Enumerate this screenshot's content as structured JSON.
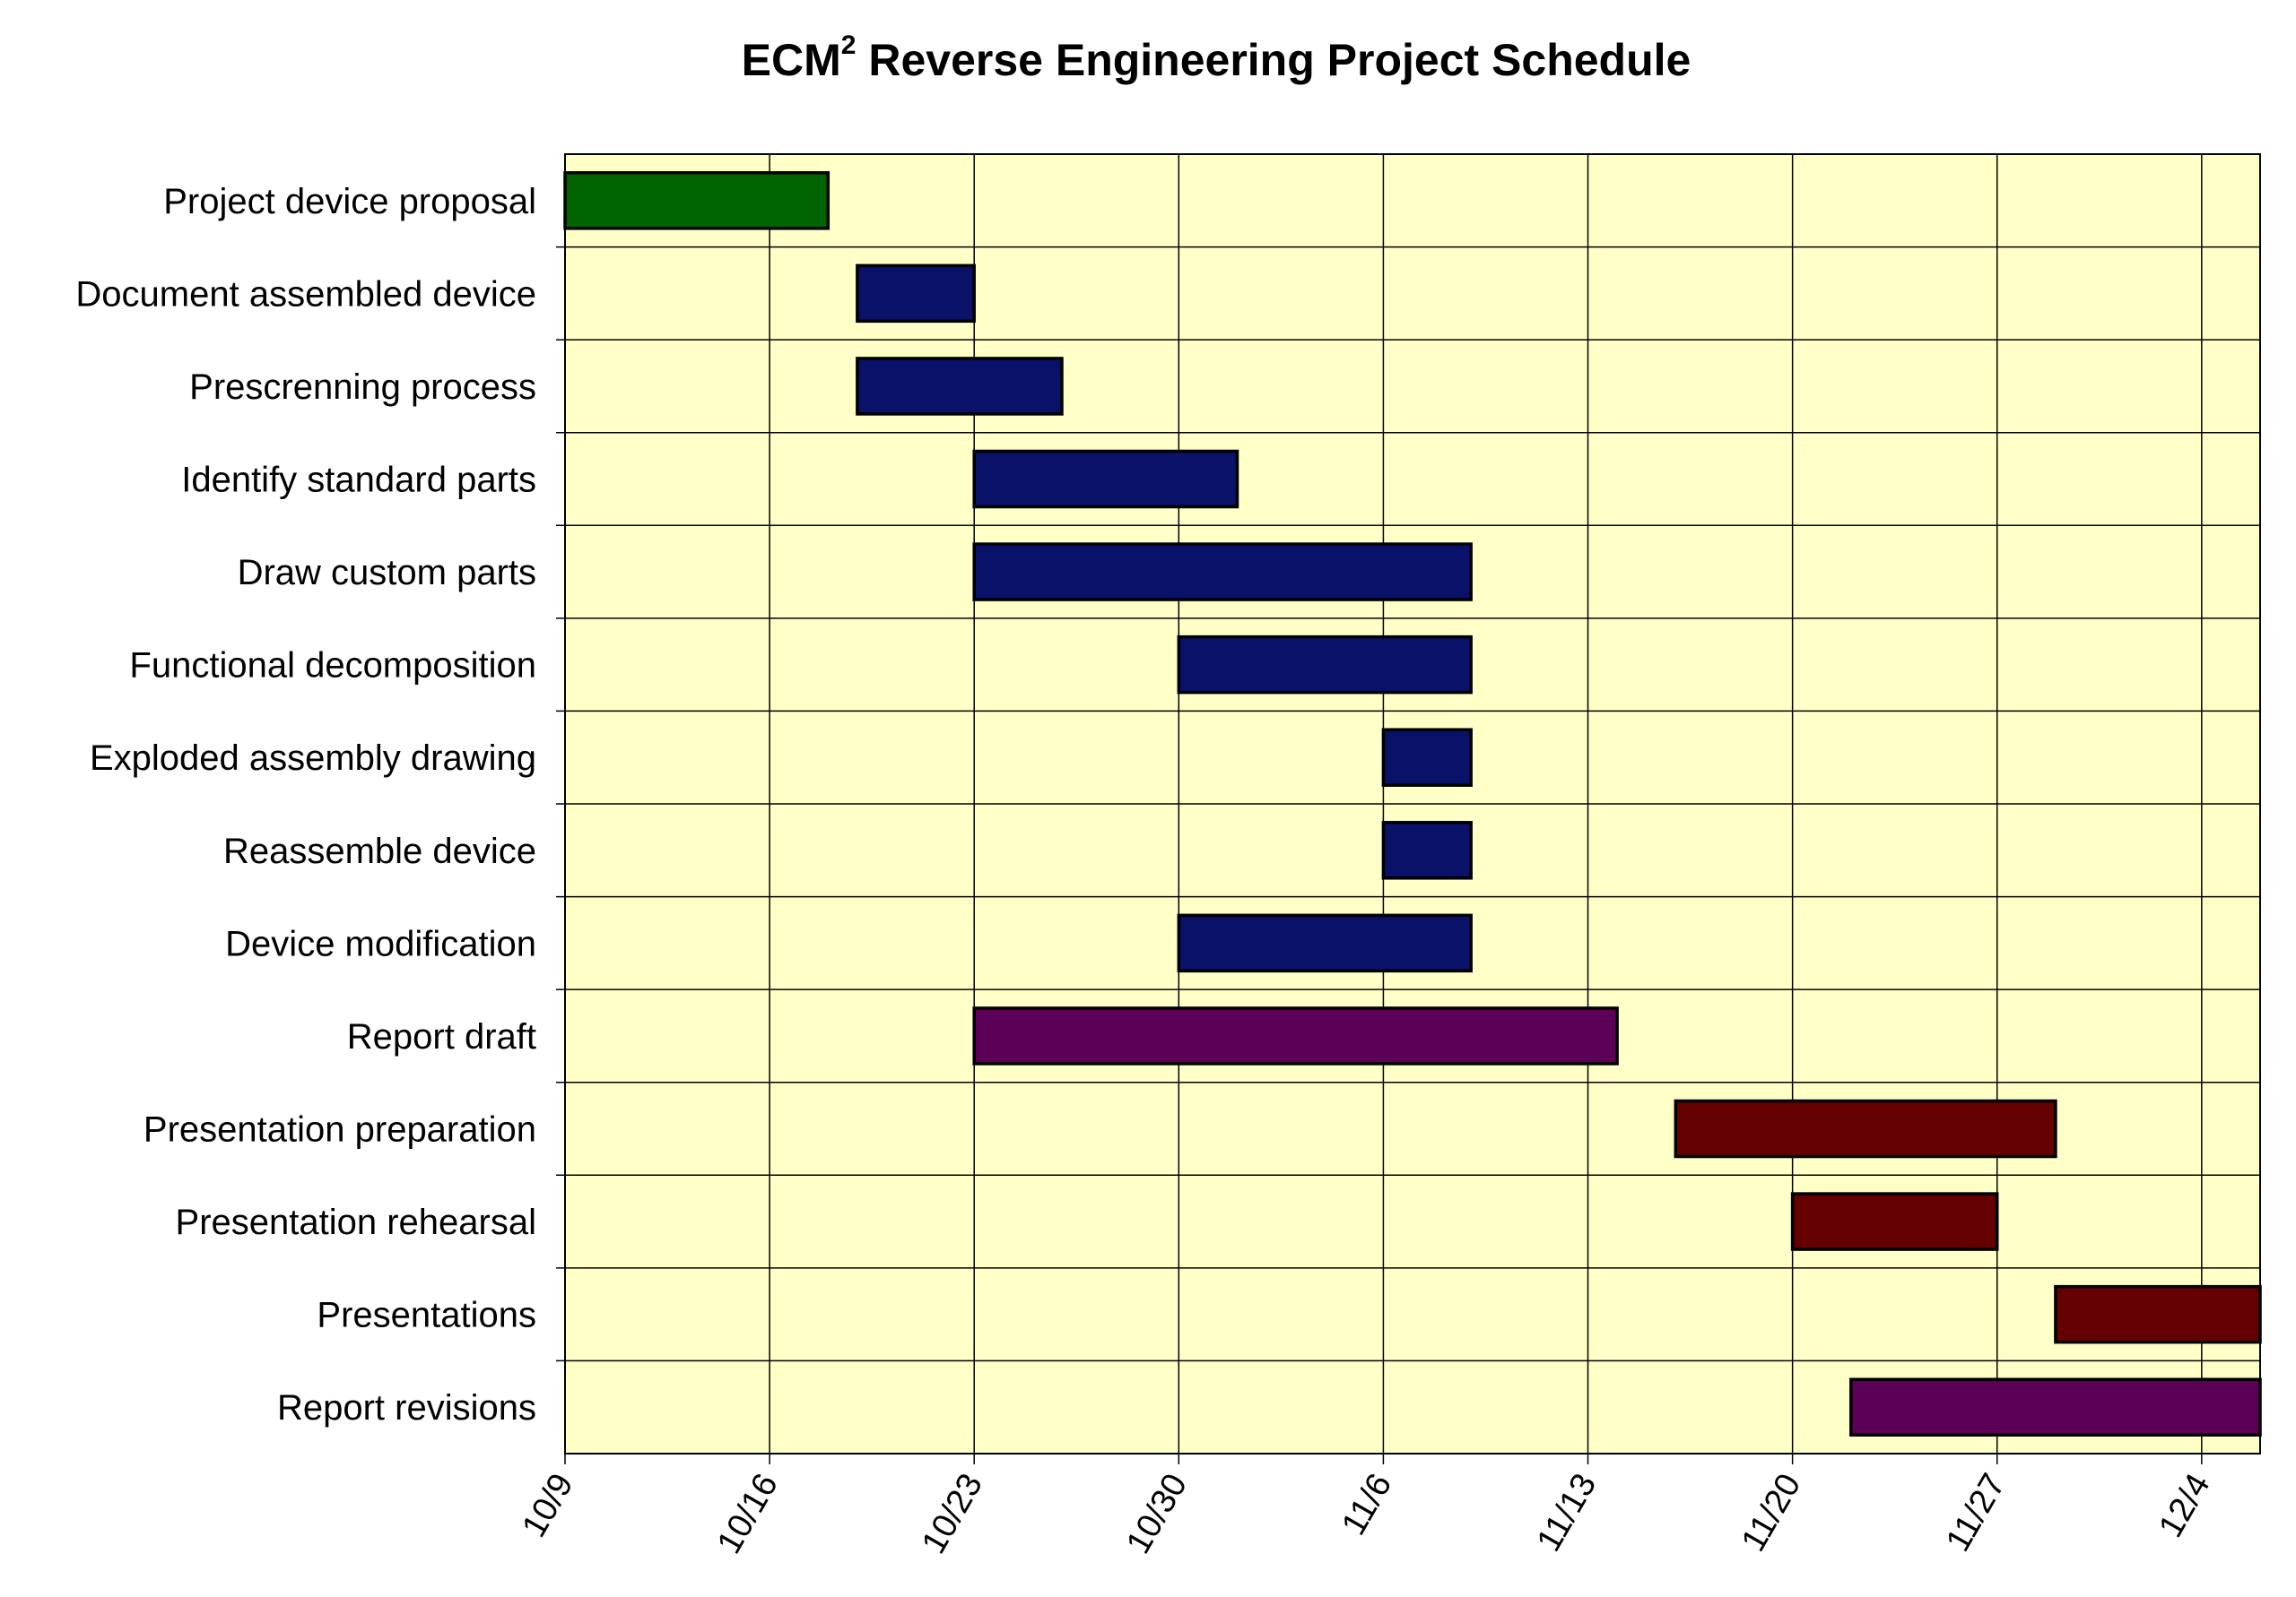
{
  "chart_data": {
    "type": "gantt",
    "title": "ECM",
    "title_superscript": "2",
    "title_rest": " Reverse Engineering Project Schedule",
    "tasks": [
      {
        "name": "Project device proposal",
        "start": "10/9",
        "end": "10/18",
        "color": "#006400"
      },
      {
        "name": "Document assembled device",
        "start": "10/19",
        "end": "10/23",
        "color": "#0a1169"
      },
      {
        "name": "Prescrenning process",
        "start": "10/19",
        "end": "10/26",
        "color": "#0a1169"
      },
      {
        "name": "Identify standard parts",
        "start": "10/23",
        "end": "11/1",
        "color": "#0a1169"
      },
      {
        "name": "Draw custom parts",
        "start": "10/23",
        "end": "11/9",
        "color": "#0a1169"
      },
      {
        "name": "Functional decomposition",
        "start": "10/30",
        "end": "11/9",
        "color": "#0a1169"
      },
      {
        "name": "Exploded assembly drawing",
        "start": "11/6",
        "end": "11/9",
        "color": "#0a1169"
      },
      {
        "name": "Reassemble device",
        "start": "11/6",
        "end": "11/9",
        "color": "#0a1169"
      },
      {
        "name": "Device modification",
        "start": "10/30",
        "end": "11/9",
        "color": "#0a1169"
      },
      {
        "name": "Report draft",
        "start": "10/23",
        "end": "11/14",
        "color": "#5c0057"
      },
      {
        "name": "Presentation preparation",
        "start": "11/16",
        "end": "11/29",
        "color": "#640000"
      },
      {
        "name": "Presentation rehearsal",
        "start": "11/20",
        "end": "11/27",
        "color": "#640000"
      },
      {
        "name": "Presentations",
        "start": "11/29",
        "end": "12/6",
        "color": "#640000"
      },
      {
        "name": "Report revisions",
        "start": "11/22",
        "end": "12/6",
        "color": "#5c0057"
      }
    ],
    "x_ticks": [
      "10/9",
      "10/16",
      "10/23",
      "10/30",
      "11/6",
      "11/13",
      "11/20",
      "11/27",
      "12/4"
    ],
    "x_range": [
      "10/9",
      "12/6"
    ],
    "grid": true,
    "plot_background": "#ffffc8",
    "grid_color": "#000000"
  }
}
